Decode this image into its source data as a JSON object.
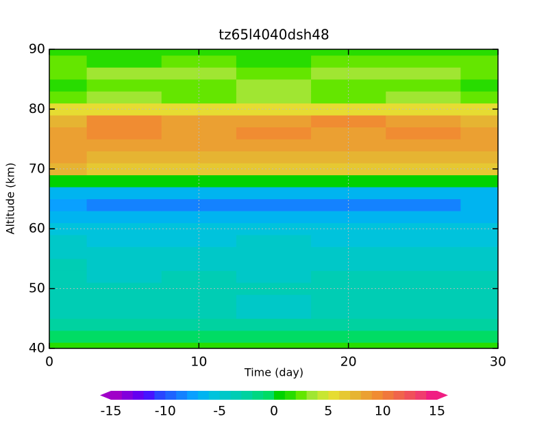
{
  "chart_data": {
    "type": "heatmap",
    "title": "tz65l4040dsh48",
    "x_label": "Time (day)",
    "y_label": "Altitude (km)",
    "x": [
      0,
      5,
      10,
      15,
      20,
      25,
      30
    ],
    "y": [
      40,
      42,
      44,
      46,
      48,
      50,
      52,
      54,
      56,
      58,
      60,
      62,
      64,
      66,
      68,
      70,
      72,
      74,
      76,
      78,
      80,
      82,
      84,
      86,
      88,
      90
    ],
    "z": [
      [
        1,
        1,
        1,
        1,
        1,
        1,
        1
      ],
      [
        -1,
        -1,
        -1,
        -1,
        -1,
        -1,
        -1
      ],
      [
        -3,
        -3,
        -3,
        -3,
        -3,
        -3,
        -3
      ],
      [
        -4,
        -4,
        -4,
        -5,
        -4,
        -4,
        -4
      ],
      [
        -4,
        -4,
        -4,
        -5,
        -4,
        -4,
        -4
      ],
      [
        -4,
        -4,
        -4,
        -4,
        -4,
        -4,
        -4
      ],
      [
        -4,
        -5,
        -4,
        -5,
        -4,
        -4,
        -4
      ],
      [
        -4,
        -5,
        -5,
        -5,
        -5,
        -5,
        -5
      ],
      [
        -5,
        -5,
        -5,
        -5,
        -5,
        -5,
        -5
      ],
      [
        -5,
        -6,
        -6,
        -5,
        -6,
        -6,
        -6
      ],
      [
        -6,
        -6,
        -6,
        -6,
        -6,
        -6,
        -6
      ],
      [
        -7,
        -7,
        -7,
        -7,
        -7,
        -7,
        -7
      ],
      [
        -8,
        -9,
        -9,
        -9,
        -9,
        -9,
        -7
      ],
      [
        -7,
        -7,
        -7,
        -7,
        -7,
        -7,
        -7
      ],
      [
        0,
        0,
        0,
        0,
        0,
        0,
        0
      ],
      [
        7,
        6,
        6,
        6,
        6,
        6,
        6
      ],
      [
        8,
        7,
        7,
        7,
        7,
        7,
        7
      ],
      [
        8,
        8,
        8,
        8,
        8,
        8,
        8
      ],
      [
        8,
        9,
        8,
        9,
        8,
        9,
        8
      ],
      [
        7,
        9,
        8,
        8,
        9,
        8,
        7
      ],
      [
        5,
        5,
        5,
        5,
        5,
        5,
        5
      ],
      [
        2,
        3,
        2,
        3,
        2,
        3,
        2
      ],
      [
        1,
        2,
        2,
        3,
        2,
        2,
        1
      ],
      [
        2,
        3,
        3,
        2,
        3,
        3,
        2
      ],
      [
        2,
        1,
        2,
        1,
        2,
        2,
        2
      ],
      [
        1,
        1,
        1,
        1,
        1,
        1,
        1
      ]
    ],
    "xlim": [
      0,
      30
    ],
    "xticks": [
      0,
      10,
      20,
      30
    ],
    "ylim": [
      40,
      90
    ],
    "yticks": [
      40,
      50,
      60,
      70,
      80,
      90
    ],
    "grid": true,
    "colorbar": {
      "lim": [
        -15,
        15
      ],
      "ticks": [
        -15,
        -10,
        -5,
        0,
        5,
        10,
        15
      ],
      "colors": [
        "#a000c8",
        "#8200dc",
        "#6400f0",
        "#4614ff",
        "#2846ff",
        "#1e64ff",
        "#1482ff",
        "#0aa0ff",
        "#00b4f0",
        "#00c3dc",
        "#00c8c8",
        "#00cdb4",
        "#00d2a0",
        "#00d782",
        "#00dc64",
        "#00d200",
        "#28dc00",
        "#64e600",
        "#a0e632",
        "#c8e632",
        "#e6dc32",
        "#e6c832",
        "#e6b432",
        "#eba032",
        "#f08c32",
        "#f0783c",
        "#f0644b",
        "#f0505a",
        "#f03c6e",
        "#f01e82"
      ]
    }
  }
}
